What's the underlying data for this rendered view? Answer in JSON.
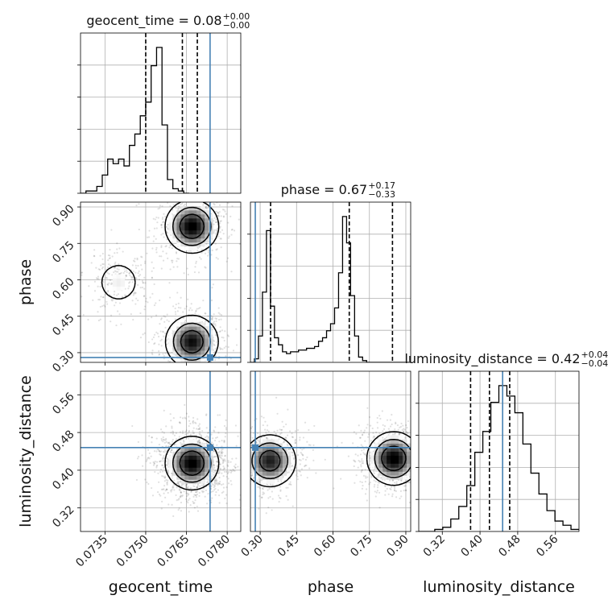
{
  "chart_data": {
    "type": "corner",
    "parameters": [
      "geocent_time",
      "phase",
      "luminosity_distance"
    ],
    "truth": {
      "geocent_time": 0.07737,
      "phase": 0.28,
      "luminosity_distance": 0.448
    },
    "titles": [
      {
        "param": "geocent_time",
        "text": "geocent_time = 0.08",
        "plus": "+0.00",
        "minus": "−0.00"
      },
      {
        "param": "phase",
        "text": "phase = 0.67",
        "plus": "+0.17",
        "minus": "−0.33"
      },
      {
        "param": "luminosity_distance",
        "text": "luminosity_distance = 0.42",
        "plus": "+0.04",
        "minus": "−0.04"
      }
    ],
    "axis_labels": {
      "geocent_time": "geocent_time",
      "phase": "phase",
      "luminosity_distance": "luminosity_distance"
    },
    "ranges": {
      "geocent_time": [
        0.0726,
        0.0785
      ],
      "phase": [
        0.26,
        0.92
      ],
      "luminosity_distance": [
        0.27,
        0.61
      ]
    },
    "ticks": {
      "geocent_time": [
        "0.0735",
        "0.0750",
        "0.0765",
        "0.0780"
      ],
      "phase": [
        "0.30",
        "0.45",
        "0.60",
        "0.75",
        "0.90"
      ],
      "luminosity_distance": [
        "0.32",
        "0.40",
        "0.48",
        "0.56"
      ]
    },
    "quantiles": {
      "geocent_time": [
        0.075,
        0.07635,
        0.0769
      ],
      "phase": [
        0.343,
        0.667,
        0.845
      ],
      "luminosity_distance": [
        0.38,
        0.42,
        0.463
      ]
    },
    "histograms": {
      "geocent_time": {
        "start": 0.0726,
        "step": 0.0002,
        "counts": [
          0,
          1,
          1,
          3,
          8,
          15,
          13,
          15,
          12,
          21,
          26,
          34,
          40,
          56,
          64,
          30,
          6,
          2,
          1,
          0
        ]
      },
      "phase": {
        "start": 0.26,
        "step": 0.0165,
        "counts": [
          0,
          2,
          15,
          40,
          75,
          32,
          14,
          10,
          6,
          5,
          6,
          6,
          7,
          7,
          8,
          8,
          9,
          12,
          14,
          18,
          22,
          31,
          51,
          83,
          68,
          38,
          15,
          3,
          1,
          0,
          0,
          0,
          0,
          0,
          0,
          0,
          0,
          0,
          0,
          0
        ]
      },
      "luminosity_distance": {
        "start": 0.27,
        "step": 0.017,
        "counts": [
          0,
          0,
          1,
          2,
          6,
          12,
          22,
          38,
          48,
          62,
          70,
          65,
          57,
          42,
          28,
          18,
          10,
          5,
          3,
          1
        ]
      }
    },
    "joint_modes": {
      "phase_vs_geocent_time": [
        {
          "x": 0.0767,
          "y": 0.82,
          "weight": 1.0
        },
        {
          "x": 0.0767,
          "y": 0.345,
          "weight": 0.95
        },
        {
          "x": 0.074,
          "y": 0.59,
          "weight": 0.35
        }
      ],
      "luminosity_distance_vs_geocent_time": [
        {
          "x": 0.0767,
          "y": 0.415,
          "weight": 1.0
        }
      ],
      "luminosity_distance_vs_phase": [
        {
          "x": 0.85,
          "y": 0.425,
          "weight": 1.0
        },
        {
          "x": 0.34,
          "y": 0.42,
          "weight": 0.9
        }
      ]
    },
    "grid": true,
    "truth_color": "#4682b4",
    "line_color": "#000000"
  }
}
